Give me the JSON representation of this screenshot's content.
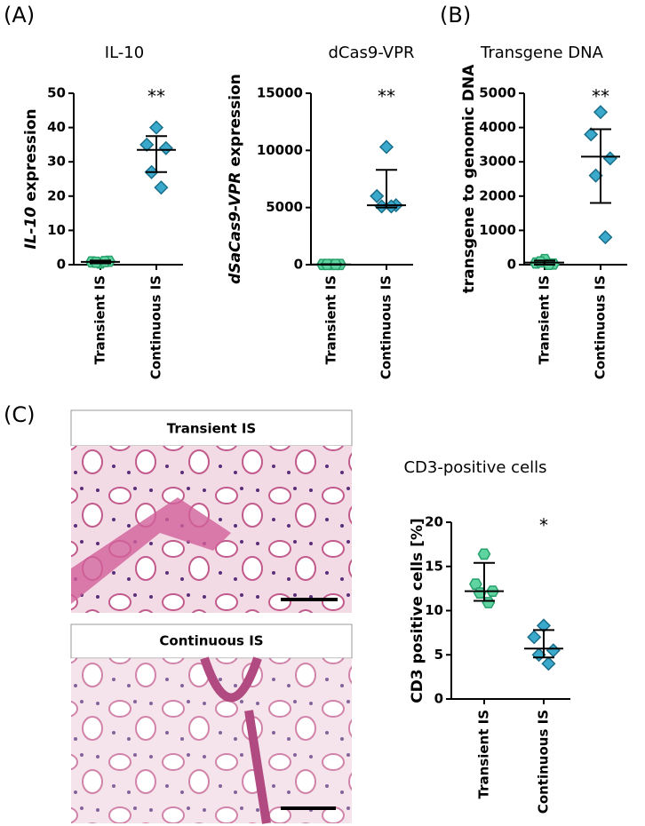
{
  "panels": [
    "(A)",
    "(B)",
    "(C)"
  ],
  "images": [
    {
      "caption": "Transient IS"
    },
    {
      "caption": "Continuous IS"
    }
  ],
  "chart_data": [
    {
      "type": "dot",
      "title": "IL-10",
      "ylabel": {
        "italic": "IL-10",
        "rest": " expression"
      },
      "categories": [
        "Transient IS",
        "Continuous IS"
      ],
      "ylim": [
        0,
        50
      ],
      "yticks": [
        0,
        10,
        20,
        30,
        40,
        50
      ],
      "annotation": "**",
      "groups": [
        {
          "color": "#5fd3a0",
          "values": [
            0.5,
            0.8,
            1,
            0.7,
            0.9
          ],
          "center": 0.8,
          "whisker": [
            0.4,
            1.2
          ]
        },
        {
          "color": "#3aa9cb",
          "values": [
            40,
            35,
            34,
            27,
            22.5
          ],
          "center": 33.5,
          "whisker": [
            27,
            37.5
          ]
        }
      ]
    },
    {
      "type": "dot",
      "title": "dCas9-VPR",
      "ylabel": {
        "italic": "dSaCas9-VPR",
        "rest": " expression"
      },
      "categories": [
        "Transient IS",
        "Continuous IS"
      ],
      "ylim": [
        0,
        15000
      ],
      "yticks": [
        0,
        5000,
        10000,
        15000
      ],
      "annotation": "**",
      "groups": [
        {
          "color": "#5fd3a0",
          "values": [
            20,
            20,
            20,
            20,
            20
          ],
          "center": 20,
          "whisker": [
            0,
            40
          ]
        },
        {
          "color": "#3aa9cb",
          "values": [
            10300,
            6000,
            5200,
            5100,
            5100
          ],
          "center": 5200,
          "whisker": [
            5000,
            8300
          ]
        }
      ]
    },
    {
      "type": "dot",
      "title": "Transgene DNA",
      "ylabel": {
        "italic": "",
        "rest": "transgene to genomic DNA"
      },
      "categories": [
        "Transient IS",
        "Continuous IS"
      ],
      "ylim": [
        0,
        5000
      ],
      "yticks": [
        0,
        1000,
        2000,
        3000,
        4000,
        5000
      ],
      "annotation": "**",
      "groups": [
        {
          "color": "#5fd3a0",
          "values": [
            150,
            50,
            20,
            80,
            10
          ],
          "center": 60,
          "whisker": [
            0,
            120
          ]
        },
        {
          "color": "#3aa9cb",
          "values": [
            4450,
            3800,
            3100,
            2600,
            800
          ],
          "center": 3150,
          "whisker": [
            1800,
            3950
          ]
        }
      ]
    },
    {
      "type": "dot",
      "title": "CD3-positive cells",
      "ylabel": {
        "italic": "",
        "rest": "CD3 positive cells [%]"
      },
      "categories": [
        "Transient IS",
        "Continuous IS"
      ],
      "ylim": [
        0,
        20
      ],
      "yticks": [
        0,
        5,
        10,
        15,
        20
      ],
      "annotation": "*",
      "groups": [
        {
          "color": "#5fd3a0",
          "values": [
            16.4,
            13,
            12.2,
            12,
            10.9
          ],
          "center": 12.2,
          "whisker": [
            11.1,
            15.4
          ]
        },
        {
          "color": "#3aa9cb",
          "values": [
            8.3,
            7,
            5.5,
            5,
            4
          ],
          "center": 5.7,
          "whisker": [
            4.7,
            7.8
          ]
        }
      ]
    }
  ]
}
